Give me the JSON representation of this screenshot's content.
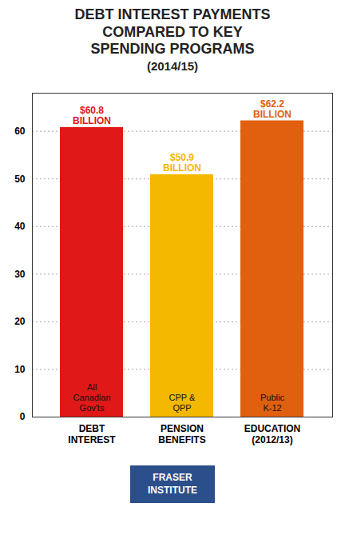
{
  "chart_data": {
    "type": "bar",
    "title": "DEBT INTEREST PAYMENTS\nCOMPARED TO KEY\nSPENDING PROGRAMS",
    "subtitle": "(2014/15)",
    "categories": [
      "DEBT\nINTEREST",
      "PENSION\nBENEFITS",
      "EDUCATION\n(2012/13)"
    ],
    "values": [
      60.8,
      50.9,
      62.2
    ],
    "colors": [
      "#e01818",
      "#f5b800",
      "#e06010"
    ],
    "data_labels": true,
    "value_labels": [
      "$60.8\nBILLION",
      "$50.9\nBILLION",
      "$62.2\nBILLION"
    ],
    "annotations": [
      {
        "category": "DEBT\nINTEREST",
        "text": "All\nCanadian\nGov'ts"
      },
      {
        "category": "PENSION\nBENEFITS",
        "text": "CPP &\nQPP"
      },
      {
        "category": "EDUCATION\n(2012/13)",
        "text": "Public\nK-12"
      }
    ],
    "caption": "FRASER\nINSTITUTE",
    "ylim": [
      0,
      68
    ],
    "yticks": [
      0,
      10,
      20,
      30,
      40,
      50,
      60
    ],
    "grid": true
  }
}
